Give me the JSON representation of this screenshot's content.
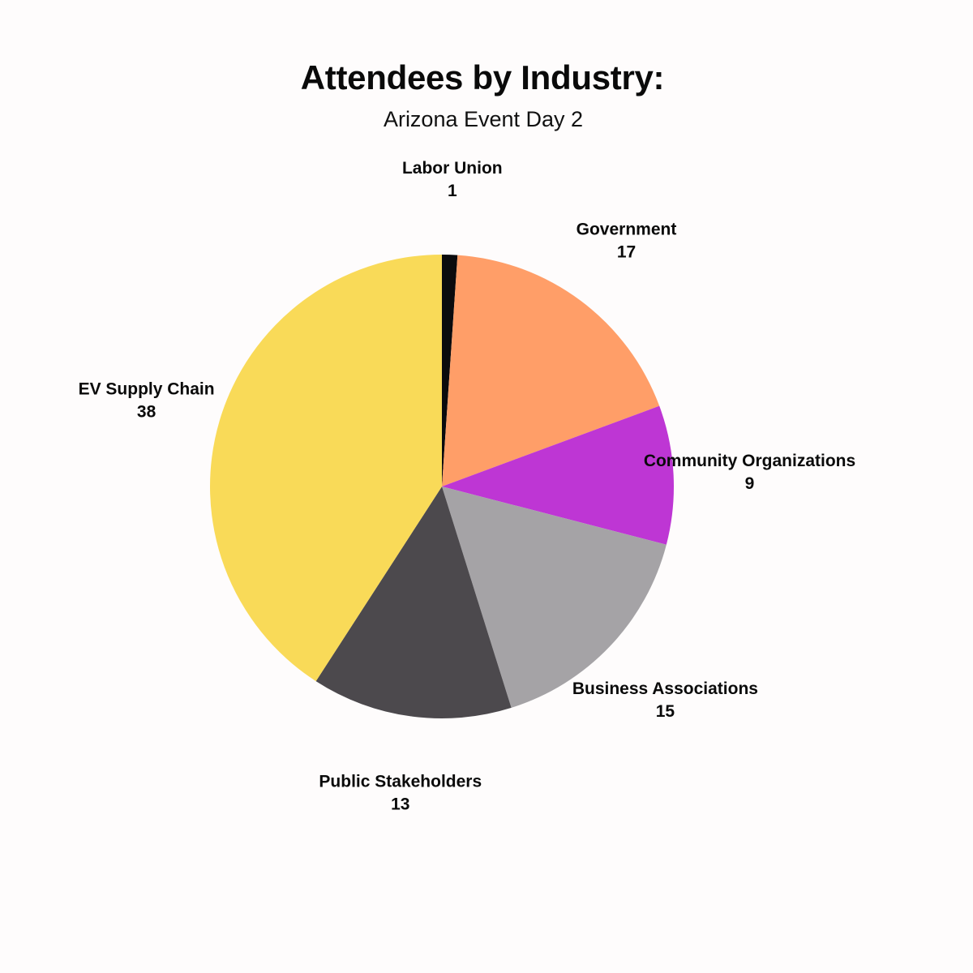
{
  "chart_data": {
    "type": "pie",
    "title": "Attendees by Industry:",
    "subtitle": "Arizona Event Day 2",
    "slices": [
      {
        "label": "Labor Union",
        "value": 1,
        "color": "#0b0b0d"
      },
      {
        "label": "Government",
        "value": 17,
        "color": "#ff9e68"
      },
      {
        "label": "Community Organizations",
        "value": 9,
        "color": "#be36d4"
      },
      {
        "label": "Business Associations",
        "value": 15,
        "color": "#a5a3a6"
      },
      {
        "label": "Public Stakeholders",
        "value": 13,
        "color": "#4c494d"
      },
      {
        "label": "EV Supply Chain",
        "value": 38,
        "color": "#f9da58"
      }
    ],
    "start": "12 o'clock",
    "direction": "clockwise",
    "legend": "none",
    "data_labels": "outside, category name and value"
  }
}
